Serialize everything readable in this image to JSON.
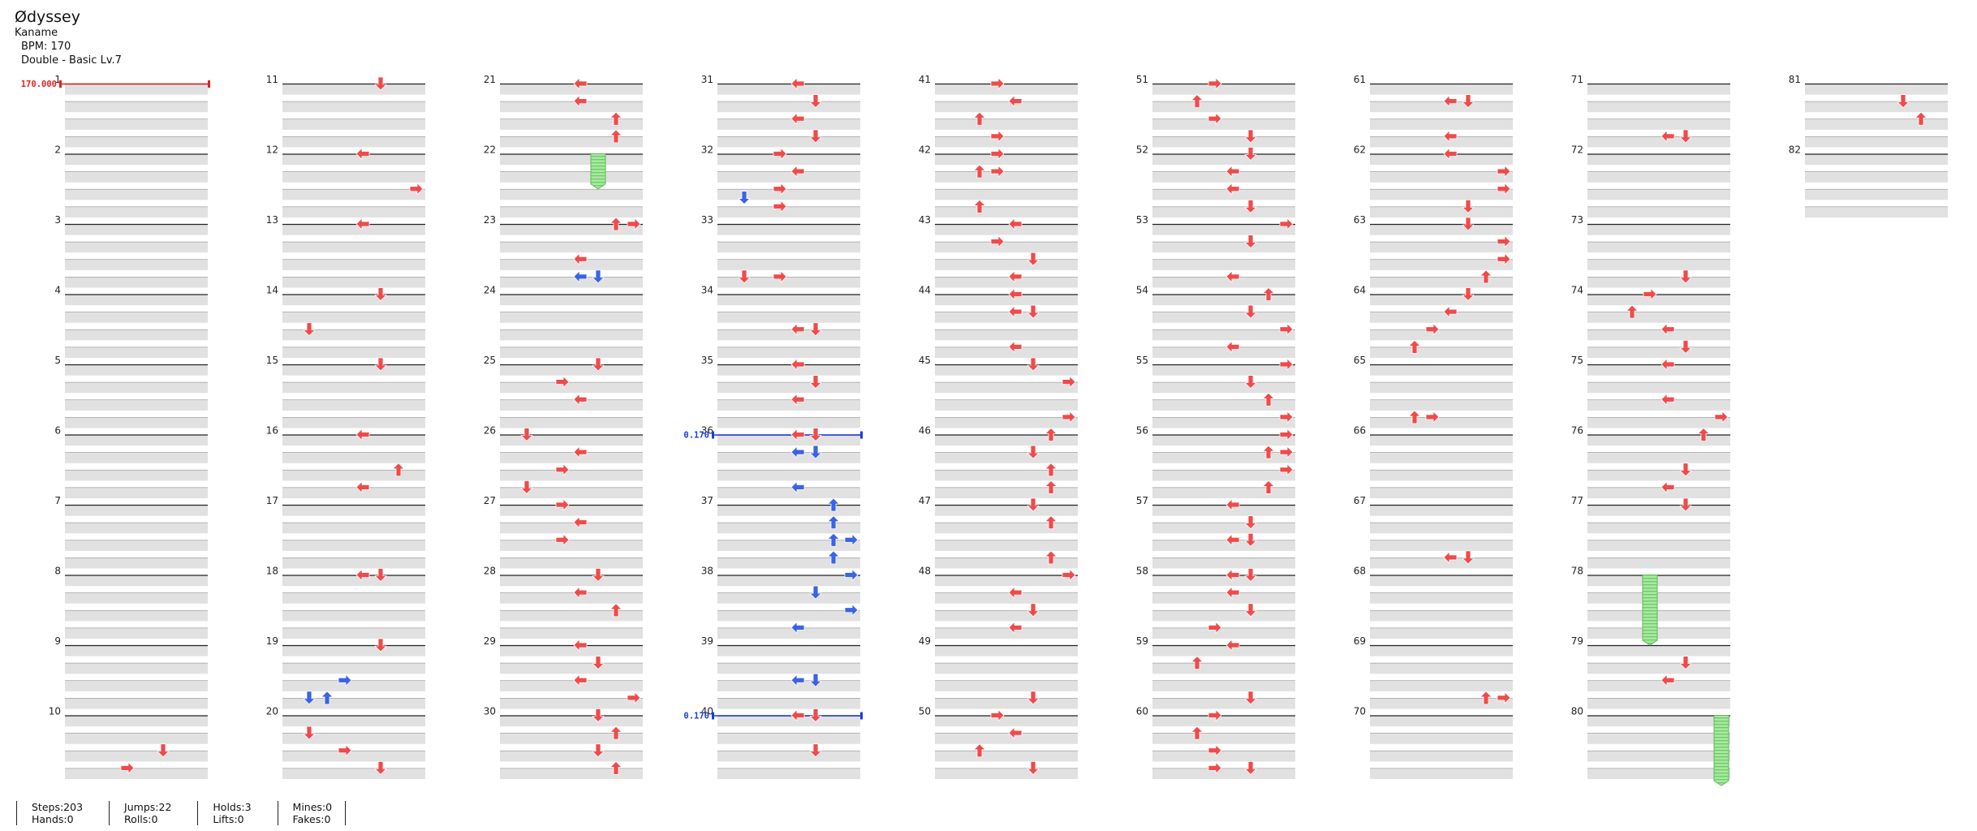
{
  "header": {
    "title": "Ødyssey",
    "artist": "Kaname",
    "bpm_label": "BPM: 170",
    "difficulty_label": "Double - Basic  Lv.7"
  },
  "chart": {
    "measures_per_column": 10,
    "lanes": 8,
    "total_measures": 82,
    "colors": {
      "normal": "#f04a4a",
      "quarter_marker": "#3a63e6",
      "hold": "#9fe59f",
      "lane_gray": "#e1e1e1"
    },
    "bpm_markers": [
      {
        "measure": 1,
        "label": "170.000",
        "color": "#e02020"
      }
    ],
    "scroll_markers": [
      {
        "measure": 36,
        "label": "0.170",
        "color": "#1a3de0"
      },
      {
        "measure": 40,
        "label": "0.170",
        "color": "#1a3de0"
      }
    ],
    "note_icons": {
      "0": "arrow-left-icon",
      "1": "arrow-down-icon",
      "2": "arrow-up-icon",
      "3": "arrow-right-icon"
    },
    "notes": [
      [
        10,
        0.5,
        5
      ],
      [
        10,
        0.75,
        3
      ],
      [
        11,
        0,
        5
      ],
      [
        12,
        0,
        4
      ],
      [
        12,
        0.5,
        7
      ],
      [
        13,
        0,
        4
      ],
      [
        14,
        0,
        5
      ],
      [
        14,
        0.5,
        1
      ],
      [
        15,
        0,
        5
      ],
      [
        16,
        0,
        4
      ],
      [
        16,
        0.5,
        6
      ],
      [
        16,
        0.75,
        4
      ],
      [
        18,
        0,
        4
      ],
      [
        18,
        0,
        5
      ],
      [
        19,
        0,
        5
      ],
      [
        19,
        0.5,
        3,
        "b"
      ],
      [
        19,
        0.75,
        1,
        "b"
      ],
      [
        19,
        0.75,
        2,
        "b"
      ],
      [
        20,
        0.25,
        1
      ],
      [
        20,
        0.5,
        3
      ],
      [
        20,
        0.75,
        5
      ],
      [
        21,
        0,
        4
      ],
      [
        21,
        0.25,
        4
      ],
      [
        21,
        0.5,
        6
      ],
      [
        21,
        0.75,
        6
      ],
      [
        23,
        0,
        6
      ],
      [
        23,
        0,
        7
      ],
      [
        23,
        0.5,
        4
      ],
      [
        23,
        0.75,
        4,
        "b"
      ],
      [
        23,
        0.75,
        5,
        "b"
      ],
      [
        25,
        0,
        5
      ],
      [
        25,
        0.25,
        3
      ],
      [
        25,
        0.5,
        4
      ],
      [
        26,
        0,
        1
      ],
      [
        26,
        0.25,
        4
      ],
      [
        26,
        0.5,
        3
      ],
      [
        26,
        0.75,
        1
      ],
      [
        27,
        0,
        3
      ],
      [
        27,
        0.25,
        4
      ],
      [
        27,
        0.5,
        3
      ],
      [
        28,
        0,
        5
      ],
      [
        28,
        0.25,
        4
      ],
      [
        28,
        0.5,
        6
      ],
      [
        29,
        0,
        4
      ],
      [
        29,
        0.25,
        5
      ],
      [
        29,
        0.5,
        4
      ],
      [
        29,
        0.75,
        7
      ],
      [
        30,
        0,
        5
      ],
      [
        30,
        0.25,
        6
      ],
      [
        30,
        0.5,
        5
      ],
      [
        30,
        0.75,
        6
      ],
      [
        31,
        0,
        4
      ],
      [
        31,
        0.25,
        5
      ],
      [
        31,
        0.5,
        4
      ],
      [
        31,
        0.75,
        5
      ],
      [
        32,
        0,
        3
      ],
      [
        32,
        0.25,
        4
      ],
      [
        32,
        0.5,
        3
      ],
      [
        32,
        0.625,
        1,
        "b"
      ],
      [
        32,
        0.75,
        3
      ],
      [
        33,
        0.75,
        1
      ],
      [
        33,
        0.75,
        3
      ],
      [
        34,
        0.5,
        4
      ],
      [
        34,
        0.5,
        5
      ],
      [
        35,
        0,
        4
      ],
      [
        35,
        0.25,
        5
      ],
      [
        35,
        0.5,
        4
      ],
      [
        36,
        0,
        4
      ],
      [
        36,
        0,
        5
      ],
      [
        36,
        0.25,
        4,
        "b"
      ],
      [
        36,
        0.25,
        5,
        "b"
      ],
      [
        36,
        0.75,
        4,
        "b"
      ],
      [
        37,
        0,
        6,
        "b"
      ],
      [
        37,
        0.25,
        6,
        "b"
      ],
      [
        37,
        0.5,
        6,
        "b"
      ],
      [
        37,
        0.5,
        7,
        "b"
      ],
      [
        37,
        0.75,
        6,
        "b"
      ],
      [
        38,
        0,
        7,
        "b"
      ],
      [
        38,
        0.25,
        5,
        "b"
      ],
      [
        38,
        0.5,
        7,
        "b"
      ],
      [
        38,
        0.75,
        4,
        "b"
      ],
      [
        39,
        0.5,
        4,
        "b"
      ],
      [
        39,
        0.5,
        5,
        "b"
      ],
      [
        40,
        0,
        4
      ],
      [
        40,
        0,
        5
      ],
      [
        40,
        0.5,
        5
      ],
      [
        41,
        0,
        3
      ],
      [
        41,
        0.25,
        4
      ],
      [
        41,
        0.5,
        2
      ],
      [
        41,
        0.75,
        3
      ],
      [
        42,
        0,
        3
      ],
      [
        42,
        0.25,
        2
      ],
      [
        42,
        0.25,
        3
      ],
      [
        42,
        0.75,
        2
      ],
      [
        43,
        0,
        4
      ],
      [
        43,
        0.25,
        3
      ],
      [
        43,
        0.5,
        5
      ],
      [
        43,
        0.75,
        4
      ],
      [
        44,
        0,
        4
      ],
      [
        44,
        0.25,
        4
      ],
      [
        44,
        0.25,
        5
      ],
      [
        44,
        0.75,
        4
      ],
      [
        45,
        0,
        5
      ],
      [
        45,
        0.25,
        7
      ],
      [
        45,
        0.75,
        7
      ],
      [
        46,
        0,
        6
      ],
      [
        46,
        0.25,
        5
      ],
      [
        46,
        0.5,
        6
      ],
      [
        46,
        0.75,
        6
      ],
      [
        47,
        0,
        5
      ],
      [
        47,
        0.25,
        6
      ],
      [
        47,
        0.75,
        6
      ],
      [
        48,
        0,
        7
      ],
      [
        48,
        0.25,
        4
      ],
      [
        48,
        0.5,
        5
      ],
      [
        48,
        0.75,
        4
      ],
      [
        49,
        0.75,
        5
      ],
      [
        50,
        0,
        3
      ],
      [
        50,
        0.25,
        4
      ],
      [
        50,
        0.5,
        2
      ],
      [
        50,
        0.75,
        5
      ],
      [
        51,
        0,
        3
      ],
      [
        51,
        0.25,
        2
      ],
      [
        51,
        0.5,
        3
      ],
      [
        51,
        0.75,
        5
      ],
      [
        52,
        0,
        5
      ],
      [
        52,
        0.25,
        4
      ],
      [
        52,
        0.5,
        4
      ],
      [
        52,
        0.75,
        5
      ],
      [
        53,
        0,
        7
      ],
      [
        53,
        0.25,
        5
      ],
      [
        53,
        0.75,
        4
      ],
      [
        54,
        0,
        6
      ],
      [
        54,
        0.25,
        5
      ],
      [
        54,
        0.5,
        7
      ],
      [
        54,
        0.75,
        4
      ],
      [
        55,
        0,
        7
      ],
      [
        55,
        0.25,
        5
      ],
      [
        55,
        0.5,
        6
      ],
      [
        55,
        0.75,
        7
      ],
      [
        56,
        0,
        7
      ],
      [
        56,
        0.25,
        6
      ],
      [
        56,
        0.25,
        7
      ],
      [
        56,
        0.5,
        7
      ],
      [
        56,
        0.75,
        6
      ],
      [
        57,
        0,
        4
      ],
      [
        57,
        0.25,
        5
      ],
      [
        57,
        0.5,
        4
      ],
      [
        57,
        0.5,
        5
      ],
      [
        58,
        0,
        4
      ],
      [
        58,
        0,
        5
      ],
      [
        58,
        0.25,
        4
      ],
      [
        58,
        0.5,
        5
      ],
      [
        58,
        0.75,
        3
      ],
      [
        59,
        0,
        4
      ],
      [
        59,
        0.25,
        2
      ],
      [
        59,
        0.75,
        5
      ],
      [
        60,
        0,
        3
      ],
      [
        60,
        0.25,
        2
      ],
      [
        60,
        0.5,
        3
      ],
      [
        60,
        0.75,
        3
      ],
      [
        60,
        0.75,
        5
      ],
      [
        61,
        0.25,
        4
      ],
      [
        61,
        0.25,
        5
      ],
      [
        61,
        0.75,
        4
      ],
      [
        62,
        0,
        4
      ],
      [
        62,
        0.25,
        7
      ],
      [
        62,
        0.5,
        7
      ],
      [
        62,
        0.75,
        5
      ],
      [
        63,
        0,
        5
      ],
      [
        63,
        0.25,
        7
      ],
      [
        63,
        0.5,
        7
      ],
      [
        63,
        0.75,
        6
      ],
      [
        64,
        0,
        5
      ],
      [
        64,
        0.25,
        4
      ],
      [
        64,
        0.5,
        3
      ],
      [
        64,
        0.75,
        2
      ],
      [
        65,
        0.75,
        2
      ],
      [
        65,
        0.75,
        3
      ],
      [
        67,
        0.75,
        4
      ],
      [
        67,
        0.75,
        5
      ],
      [
        69,
        0.75,
        6
      ],
      [
        69,
        0.75,
        7
      ],
      [
        71,
        0.75,
        4
      ],
      [
        71,
        0.75,
        5
      ],
      [
        73,
        0.75,
        5
      ],
      [
        74,
        0,
        3
      ],
      [
        74,
        0.25,
        2
      ],
      [
        74,
        0.5,
        4
      ],
      [
        74,
        0.75,
        5
      ],
      [
        75,
        0,
        4
      ],
      [
        75,
        0.5,
        4
      ],
      [
        75,
        0.75,
        7
      ],
      [
        76,
        0,
        6
      ],
      [
        76,
        0.5,
        5
      ],
      [
        76,
        0.75,
        4
      ],
      [
        77,
        0,
        5
      ],
      [
        79,
        0.25,
        5
      ],
      [
        79,
        0.5,
        4
      ],
      [
        81,
        0.25,
        5
      ],
      [
        81,
        0.5,
        6
      ]
    ],
    "holds": [
      {
        "measure": 22,
        "pos": 0,
        "lane": 5,
        "length": 0.5
      },
      {
        "measure": 78,
        "pos": 0,
        "lane": 3,
        "length": 1
      },
      {
        "measure": 80,
        "pos": 0,
        "lane": 7,
        "length": 1
      }
    ]
  },
  "stats": {
    "steps": "Steps:203",
    "hands": "Hands:0",
    "jumps": "Jumps:22",
    "rolls": "Rolls:0",
    "holds": "Holds:3",
    "lifts": "Lifts:0",
    "mines": "Mines:0",
    "fakes": "Fakes:0"
  }
}
